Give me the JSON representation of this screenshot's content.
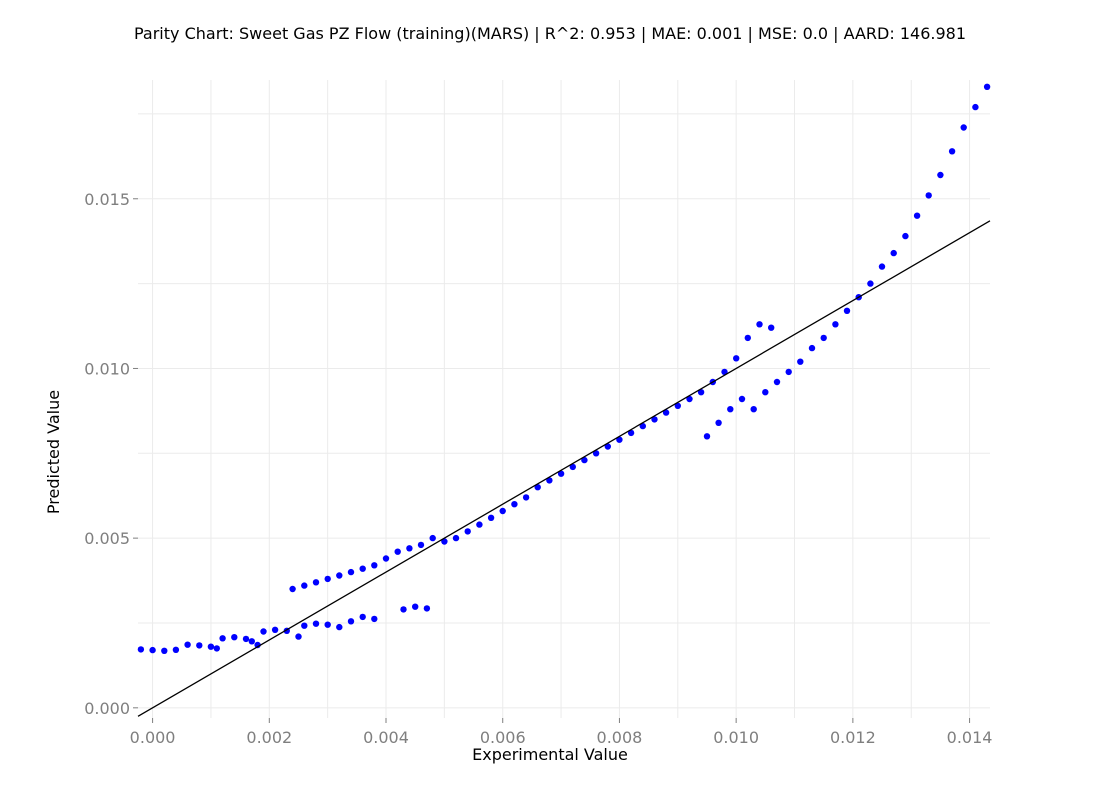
{
  "chart_data": {
    "type": "scatter",
    "title": "Parity Chart: Sweet Gas PZ Flow (training)(MARS) | R^2: 0.953 | MAE: 0.001 | MSE: 0.0 | AARD: 146.981",
    "xlabel": "Experimental Value",
    "ylabel": "Predicted Value",
    "xlim": [
      -0.00025,
      0.01435
    ],
    "ylim": [
      -0.0003,
      0.0185
    ],
    "x_ticks": [
      0.0,
      0.002,
      0.004,
      0.006,
      0.008,
      0.01,
      0.012,
      0.014
    ],
    "x_tick_labels": [
      "0.000",
      "0.002",
      "0.004",
      "0.006",
      "0.008",
      "0.010",
      "0.012",
      "0.014"
    ],
    "y_ticks": [
      0.0,
      0.005,
      0.01,
      0.015
    ],
    "y_tick_labels": [
      "0.000",
      "0.005",
      "0.010",
      "0.015"
    ],
    "grid": true,
    "point_color": "#0000ff",
    "line_color": "#000000",
    "parity_line": [
      [
        -0.00025,
        -0.00025
      ],
      [
        0.01435,
        0.01435
      ]
    ],
    "series": [
      {
        "points": [
          [
            -0.0002,
            0.00172
          ],
          [
            0.0,
            0.0017
          ],
          [
            0.0002,
            0.00168
          ],
          [
            0.0004,
            0.00171
          ],
          [
            0.0006,
            0.00186
          ],
          [
            0.0008,
            0.00184
          ],
          [
            0.001,
            0.0018
          ],
          [
            0.0011,
            0.00175
          ],
          [
            0.0012,
            0.00205
          ],
          [
            0.0014,
            0.00208
          ],
          [
            0.0016,
            0.00203
          ],
          [
            0.0017,
            0.00196
          ],
          [
            0.0018,
            0.00185
          ],
          [
            0.0019,
            0.00225
          ],
          [
            0.0021,
            0.0023
          ],
          [
            0.0023,
            0.00227
          ],
          [
            0.0025,
            0.0021
          ],
          [
            0.0026,
            0.00242
          ],
          [
            0.0028,
            0.00248
          ],
          [
            0.003,
            0.00245
          ],
          [
            0.0032,
            0.00238
          ],
          [
            0.0034,
            0.00255
          ],
          [
            0.0036,
            0.00268
          ],
          [
            0.0038,
            0.00262
          ],
          [
            0.0043,
            0.0029
          ],
          [
            0.0045,
            0.00298
          ],
          [
            0.0047,
            0.00293
          ],
          [
            0.0024,
            0.0035
          ],
          [
            0.0026,
            0.0036
          ],
          [
            0.0028,
            0.0037
          ],
          [
            0.003,
            0.0038
          ],
          [
            0.0032,
            0.0039
          ],
          [
            0.0034,
            0.004
          ],
          [
            0.0036,
            0.0041
          ],
          [
            0.0038,
            0.0042
          ],
          [
            0.004,
            0.0044
          ],
          [
            0.0042,
            0.0046
          ],
          [
            0.0044,
            0.0047
          ],
          [
            0.0046,
            0.0048
          ],
          [
            0.0048,
            0.005
          ],
          [
            0.005,
            0.0049
          ],
          [
            0.0052,
            0.005
          ],
          [
            0.0054,
            0.0052
          ],
          [
            0.0056,
            0.0054
          ],
          [
            0.0058,
            0.0056
          ],
          [
            0.006,
            0.0058
          ],
          [
            0.0062,
            0.006
          ],
          [
            0.0064,
            0.0062
          ],
          [
            0.0066,
            0.0065
          ],
          [
            0.0068,
            0.0067
          ],
          [
            0.007,
            0.0069
          ],
          [
            0.0072,
            0.0071
          ],
          [
            0.0074,
            0.0073
          ],
          [
            0.0076,
            0.0075
          ],
          [
            0.0078,
            0.0077
          ],
          [
            0.008,
            0.0079
          ],
          [
            0.0082,
            0.0081
          ],
          [
            0.0084,
            0.0083
          ],
          [
            0.0086,
            0.0085
          ],
          [
            0.0088,
            0.0087
          ],
          [
            0.009,
            0.0089
          ],
          [
            0.0092,
            0.0091
          ],
          [
            0.0094,
            0.0093
          ],
          [
            0.0096,
            0.0096
          ],
          [
            0.0098,
            0.0099
          ],
          [
            0.01,
            0.0103
          ],
          [
            0.0102,
            0.0109
          ],
          [
            0.0104,
            0.0113
          ],
          [
            0.0106,
            0.0112
          ],
          [
            0.0095,
            0.008
          ],
          [
            0.0097,
            0.0084
          ],
          [
            0.0099,
            0.0088
          ],
          [
            0.0101,
            0.0091
          ],
          [
            0.0103,
            0.0088
          ],
          [
            0.0105,
            0.0093
          ],
          [
            0.0107,
            0.0096
          ],
          [
            0.0109,
            0.0099
          ],
          [
            0.0111,
            0.0102
          ],
          [
            0.0113,
            0.0106
          ],
          [
            0.0115,
            0.0109
          ],
          [
            0.0117,
            0.0113
          ],
          [
            0.0119,
            0.0117
          ],
          [
            0.0121,
            0.0121
          ],
          [
            0.0123,
            0.0125
          ],
          [
            0.0125,
            0.013
          ],
          [
            0.0127,
            0.0134
          ],
          [
            0.0129,
            0.0139
          ],
          [
            0.0131,
            0.0145
          ],
          [
            0.0133,
            0.0151
          ],
          [
            0.0135,
            0.0157
          ],
          [
            0.0137,
            0.0164
          ],
          [
            0.0139,
            0.0171
          ],
          [
            0.0141,
            0.0177
          ],
          [
            0.0143,
            0.0183
          ]
        ]
      }
    ]
  }
}
